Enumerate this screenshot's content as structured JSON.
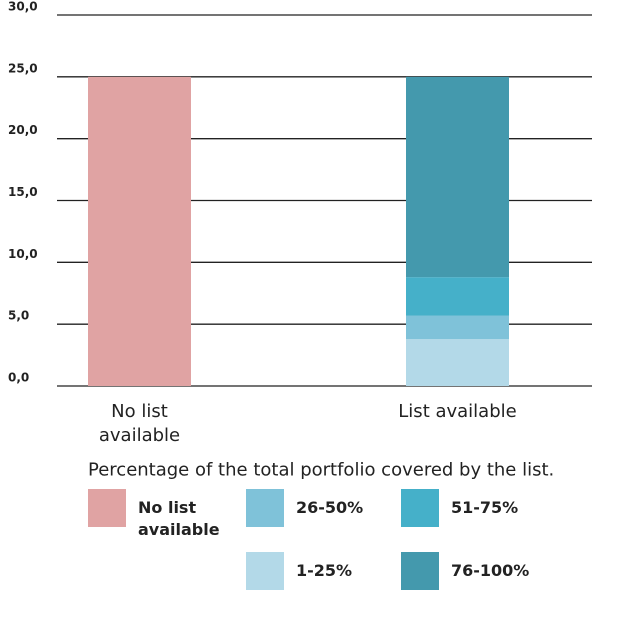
{
  "chart_data": {
    "type": "bar",
    "stacked": true,
    "xlabel": "Percentage of the total portfolio covered by the list.",
    "categories": [
      "No list available",
      "List available"
    ],
    "series": [
      {
        "name": "No list available",
        "color": "#e0a3a3",
        "values": [
          25,
          null
        ]
      },
      {
        "name": "1-25%",
        "color": "#b3d9e8",
        "values": [
          null,
          3.8
        ]
      },
      {
        "name": "26-50%",
        "color": "#7fc2d9",
        "values": [
          null,
          1.9
        ]
      },
      {
        "name": "51-75%",
        "color": "#45b0c9",
        "values": [
          null,
          3.1
        ]
      },
      {
        "name": "76-100%",
        "color": "#4499ad",
        "values": [
          null,
          16.2
        ]
      }
    ],
    "ylim": [
      0,
      30
    ],
    "yticks": [
      {
        "value": 0,
        "label": "0,0"
      },
      {
        "value": 5,
        "label": "5,0"
      },
      {
        "value": 10,
        "label": "10,0"
      },
      {
        "value": 15,
        "label": "15,0"
      },
      {
        "value": 20,
        "label": "20,0"
      },
      {
        "value": 25,
        "label": "25,0"
      },
      {
        "value": 30,
        "label": "30,0"
      }
    ],
    "grid": true
  }
}
